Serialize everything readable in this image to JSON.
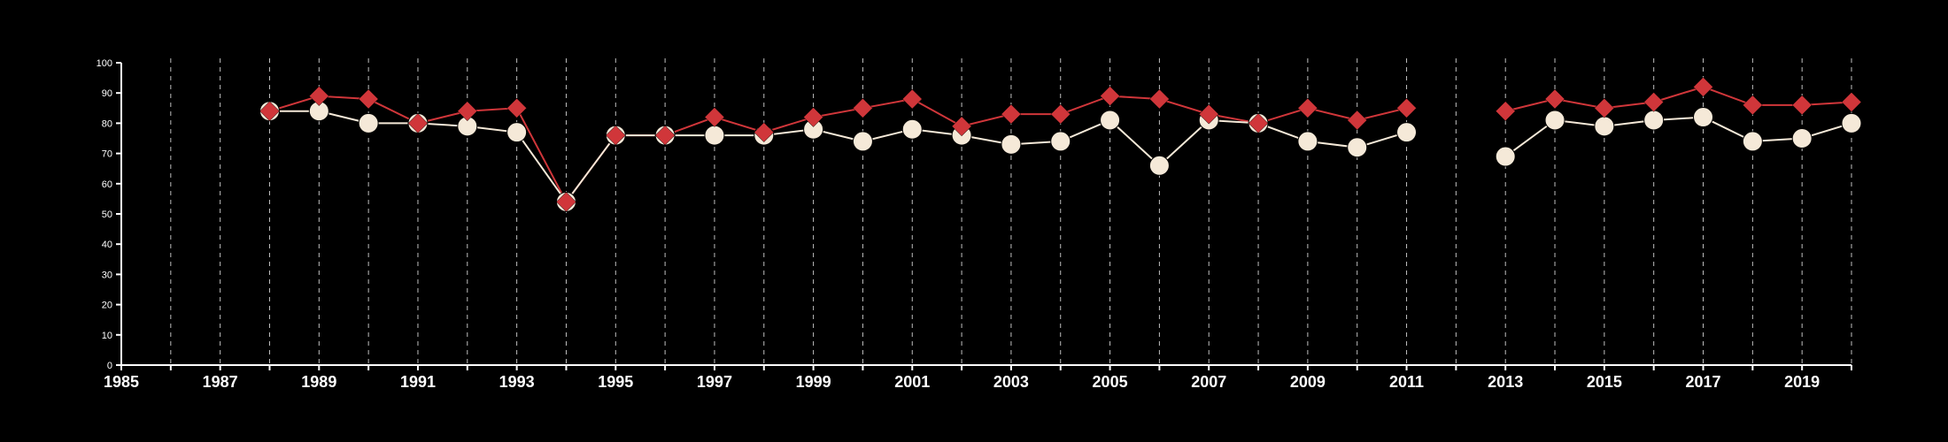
{
  "chart_data": {
    "type": "line",
    "title": "",
    "xlabel": "",
    "ylabel": "",
    "xlim": [
      1985,
      2020
    ],
    "ylim": [
      0,
      100
    ],
    "y_ticks": [
      0,
      10,
      20,
      30,
      40,
      50,
      60,
      70,
      80,
      90,
      100
    ],
    "x_tick_labels": [
      1985,
      1987,
      1989,
      1991,
      1993,
      1995,
      1997,
      1999,
      2001,
      2003,
      2005,
      2007,
      2009,
      2011,
      2013,
      2015,
      2017,
      2019
    ],
    "grid": "vertical dashed lines at every year",
    "legend": "none",
    "x": [
      1988,
      1989,
      1990,
      1991,
      1992,
      1993,
      1994,
      1995,
      1996,
      1997,
      1998,
      1999,
      2000,
      2001,
      2002,
      2003,
      2004,
      2005,
      2006,
      2007,
      2008,
      2009,
      2010,
      2011,
      2012,
      2013,
      2014,
      2015,
      2016,
      2017,
      2018,
      2019,
      2020
    ],
    "series": [
      {
        "marker": "diamond",
        "color": "#d0363a",
        "values": [
          84,
          89,
          88,
          80,
          84,
          85,
          54,
          76,
          76,
          82,
          77,
          82,
          85,
          88,
          79,
          83,
          83,
          89,
          88,
          83,
          80,
          85,
          81,
          85,
          null,
          84,
          88,
          85,
          87,
          92,
          86,
          86,
          87
        ]
      },
      {
        "marker": "circle",
        "color": "#f5e9d8",
        "values": [
          84,
          84,
          80,
          80,
          79,
          77,
          54,
          76,
          76,
          76,
          76,
          78,
          74,
          78,
          76,
          73,
          74,
          81,
          66,
          81,
          80,
          74,
          72,
          77,
          null,
          69,
          81,
          79,
          81,
          82,
          74,
          75,
          80
        ]
      }
    ]
  }
}
